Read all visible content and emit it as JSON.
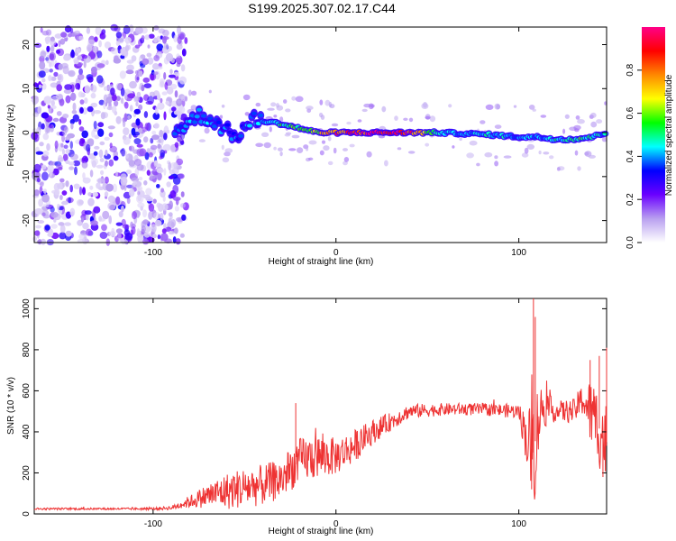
{
  "title": "S199.2025.307.02.17.C44",
  "chart_data": [
    {
      "type": "heatmap",
      "title": "S199.2025.307.02.17.C44",
      "xlabel": "Height of straight line (km)",
      "ylabel": "Frequency (Hz)",
      "xlim": [
        -165,
        148
      ],
      "ylim": [
        -25,
        24
      ],
      "xticks": [
        -100,
        0,
        100
      ],
      "xtick_labels": [
        "-100",
        "0",
        "100"
      ],
      "yticks": [
        -20,
        -10,
        0,
        10,
        20
      ],
      "ytick_labels": [
        "-20",
        "-10",
        "0",
        "10",
        "20"
      ],
      "colorbar": {
        "label": "Normalized spectral amplitude",
        "range": [
          0,
          1
        ],
        "ticks": [
          0.0,
          0.2,
          0.4,
          0.6,
          0.8
        ],
        "tick_labels": [
          "0.0",
          "0.2",
          "0.4",
          "0.6",
          "0.8"
        ],
        "colors": [
          "#ffffff",
          "#b9a0f0",
          "#6a00ff",
          "#0000ff",
          "#00ffff",
          "#00ff00",
          "#ffff00",
          "#ff8800",
          "#ff0000",
          "#ff0088"
        ]
      },
      "ridge": {
        "x": [
          -85,
          -75,
          -68,
          -55,
          -45,
          -30,
          -20,
          -10,
          0,
          20,
          40,
          55,
          70,
          85,
          100,
          110,
          120,
          130,
          140,
          148
        ],
        "frequency": [
          1,
          4,
          3,
          -1,
          3,
          2,
          1,
          0,
          0,
          0,
          0,
          0,
          -0.2,
          -0.5,
          -1,
          -1,
          -1.5,
          -1.5,
          -1,
          0
        ],
        "amplitude": [
          0.35,
          0.4,
          0.38,
          0.35,
          0.4,
          0.5,
          0.55,
          0.6,
          0.85,
          0.9,
          0.9,
          0.45,
          0.4,
          0.45,
          0.4,
          0.4,
          0.45,
          0.55,
          0.5,
          0.4
        ]
      },
      "noise_region": {
        "x_range": [
          -165,
          -88
        ],
        "freq_range": [
          -25,
          24
        ],
        "amplitude_range": [
          0.05,
          0.25
        ]
      }
    },
    {
      "type": "line",
      "xlabel": "Height of straight line (km)",
      "ylabel": "SNR (10 * v/v)",
      "xlim": [
        -165,
        148
      ],
      "ylim": [
        0,
        1050
      ],
      "xticks": [
        -100,
        0,
        100
      ],
      "xtick_labels": [
        "-100",
        "0",
        "100"
      ],
      "yticks": [
        0,
        200,
        400,
        600,
        800,
        1000
      ],
      "ytick_labels": [
        "0",
        "200",
        "400",
        "600",
        "800",
        "1000"
      ],
      "series": [
        {
          "name": "SNR",
          "color": "#ee3333",
          "trend_x": [
            -165,
            -120,
            -100,
            -90,
            -80,
            -70,
            -60,
            -50,
            -40,
            -30,
            -20,
            -10,
            0,
            10,
            20,
            30,
            40,
            60,
            80,
            100,
            105,
            108,
            112,
            120,
            130,
            135,
            140,
            145,
            148
          ],
          "trend_y": [
            25,
            25,
            25,
            30,
            60,
            90,
            110,
            130,
            140,
            170,
            260,
            280,
            280,
            330,
            400,
            450,
            500,
            510,
            510,
            500,
            350,
            300,
            520,
            500,
            500,
            560,
            480,
            400,
            350
          ],
          "noise_amplitude": [
            5,
            5,
            6,
            10,
            30,
            60,
            90,
            100,
            100,
            100,
            110,
            110,
            90,
            80,
            60,
            45,
            35,
            30,
            30,
            35,
            150,
            320,
            110,
            50,
            60,
            80,
            180,
            200,
            200
          ],
          "spikes": [
            {
              "x": 108,
              "y": 1050
            },
            {
              "x": 109,
              "y": 960
            },
            {
              "x": 107,
              "y": 120
            },
            {
              "x": 139,
              "y": 750
            },
            {
              "x": 144,
              "y": 770
            },
            {
              "x": 146,
              "y": 180
            },
            {
              "x": 148,
              "y": 810
            },
            {
              "x": -22,
              "y": 540
            }
          ]
        }
      ]
    }
  ]
}
